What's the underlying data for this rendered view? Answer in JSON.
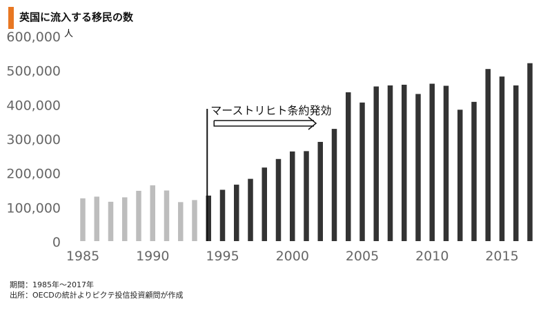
{
  "title": "英国に流入する移民の数",
  "footnotes": {
    "period": "期間：1985年～2017年",
    "source": "出所：OECDの統計よりピクテ投信投資顧問が作成"
  },
  "colors": {
    "accent": "#E87722",
    "bar_before": "#BDBDBD",
    "bar_after": "#333333",
    "axis_text": "#666666"
  },
  "chart_data": {
    "type": "bar",
    "y_unit": "人",
    "ylim": [
      0,
      600000
    ],
    "y_ticks": [
      0,
      100000,
      200000,
      300000,
      400000,
      500000,
      600000
    ],
    "y_tick_labels": [
      "0",
      "100,000",
      "200,000",
      "300,000",
      "400,000",
      "500,000",
      "600,000"
    ],
    "x_tick_labels": [
      "1985",
      "1990",
      "1995",
      "2000",
      "2005",
      "2010",
      "2015"
    ],
    "grid": false,
    "categories": [
      1985,
      1986,
      1987,
      1988,
      1989,
      1990,
      1991,
      1992,
      1993,
      1994,
      1995,
      1996,
      1997,
      1998,
      1999,
      2000,
      2001,
      2002,
      2003,
      2004,
      2005,
      2006,
      2007,
      2008,
      2009,
      2010,
      2011,
      2012,
      2013,
      2014,
      2015,
      2016,
      2017
    ],
    "values": [
      125000,
      130000,
      115000,
      128000,
      147000,
      163000,
      148000,
      114000,
      120000,
      133000,
      150000,
      165000,
      182000,
      215000,
      240000,
      262000,
      263000,
      290000,
      328000,
      435000,
      405000,
      452000,
      455000,
      457000,
      430000,
      460000,
      454000,
      384000,
      407000,
      503000,
      481000,
      455000,
      520000
    ],
    "annotation": {
      "year": 1994,
      "label": "マーストリヒト条約発効"
    }
  }
}
